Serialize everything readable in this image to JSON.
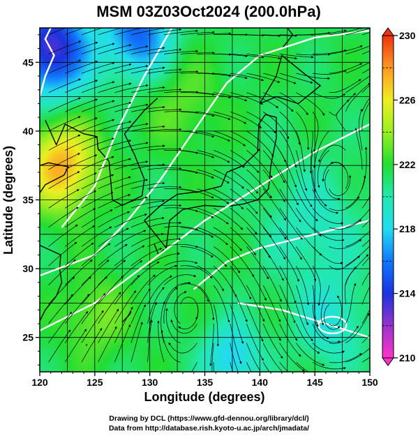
{
  "title": "MSM 03Z03Oct2024 (200.0hPa)",
  "xlabel": "Longitude (degrees)",
  "ylabel": "Latitude  (degrees)",
  "credits": {
    "line1": "Drawing by DCL (https://www.gfd-dennou.org/library/dcl/)",
    "line2": "Data from http://database.rish.kyoto-u.ac.jp/arch/jmadata/"
  },
  "chart_data": {
    "type": "heatmap",
    "xlim": [
      120,
      150
    ],
    "ylim": [
      22.5,
      47.5
    ],
    "xticks": [
      "120",
      "125",
      "130",
      "135",
      "140",
      "145",
      "150"
    ],
    "yticks": [
      "25",
      "30",
      "35",
      "40",
      "45"
    ],
    "grid": true,
    "colorbar": {
      "min": 210,
      "max": 230,
      "ticks": [
        "210",
        "214",
        "218",
        "222",
        "226",
        "230"
      ],
      "placement": "right"
    },
    "blobs": [
      {
        "lon": 122.0,
        "lat": 37.5,
        "value": 227.5,
        "r": 3.2
      },
      {
        "lon": 121.0,
        "lat": 46.0,
        "value": 213.0,
        "r": 3.5
      },
      {
        "lon": 129.0,
        "lat": 47.0,
        "value": 215.5,
        "r": 3.0
      },
      {
        "lon": 146.5,
        "lat": 26.0,
        "value": 219.0,
        "r": 3.2
      },
      {
        "lon": 145.0,
        "lat": 33.0,
        "value": 219.5,
        "r": 4.5
      },
      {
        "lon": 137.5,
        "lat": 23.5,
        "value": 217.5,
        "r": 2.5
      },
      {
        "lon": 125.0,
        "lat": 26.5,
        "value": 223.5,
        "r": 3.0
      },
      {
        "lon": 133.0,
        "lat": 42.0,
        "value": 223.0,
        "r": 3.5
      }
    ],
    "base_value": 221.5,
    "vortices": [
      {
        "lon": 146.5,
        "lat": 26.0,
        "type": "cyclonic"
      },
      {
        "lon": 147.0,
        "lat": 36.0,
        "type": "cyclonic"
      },
      {
        "lon": 133.5,
        "lat": 27.5,
        "type": "anticyclonic"
      }
    ]
  }
}
